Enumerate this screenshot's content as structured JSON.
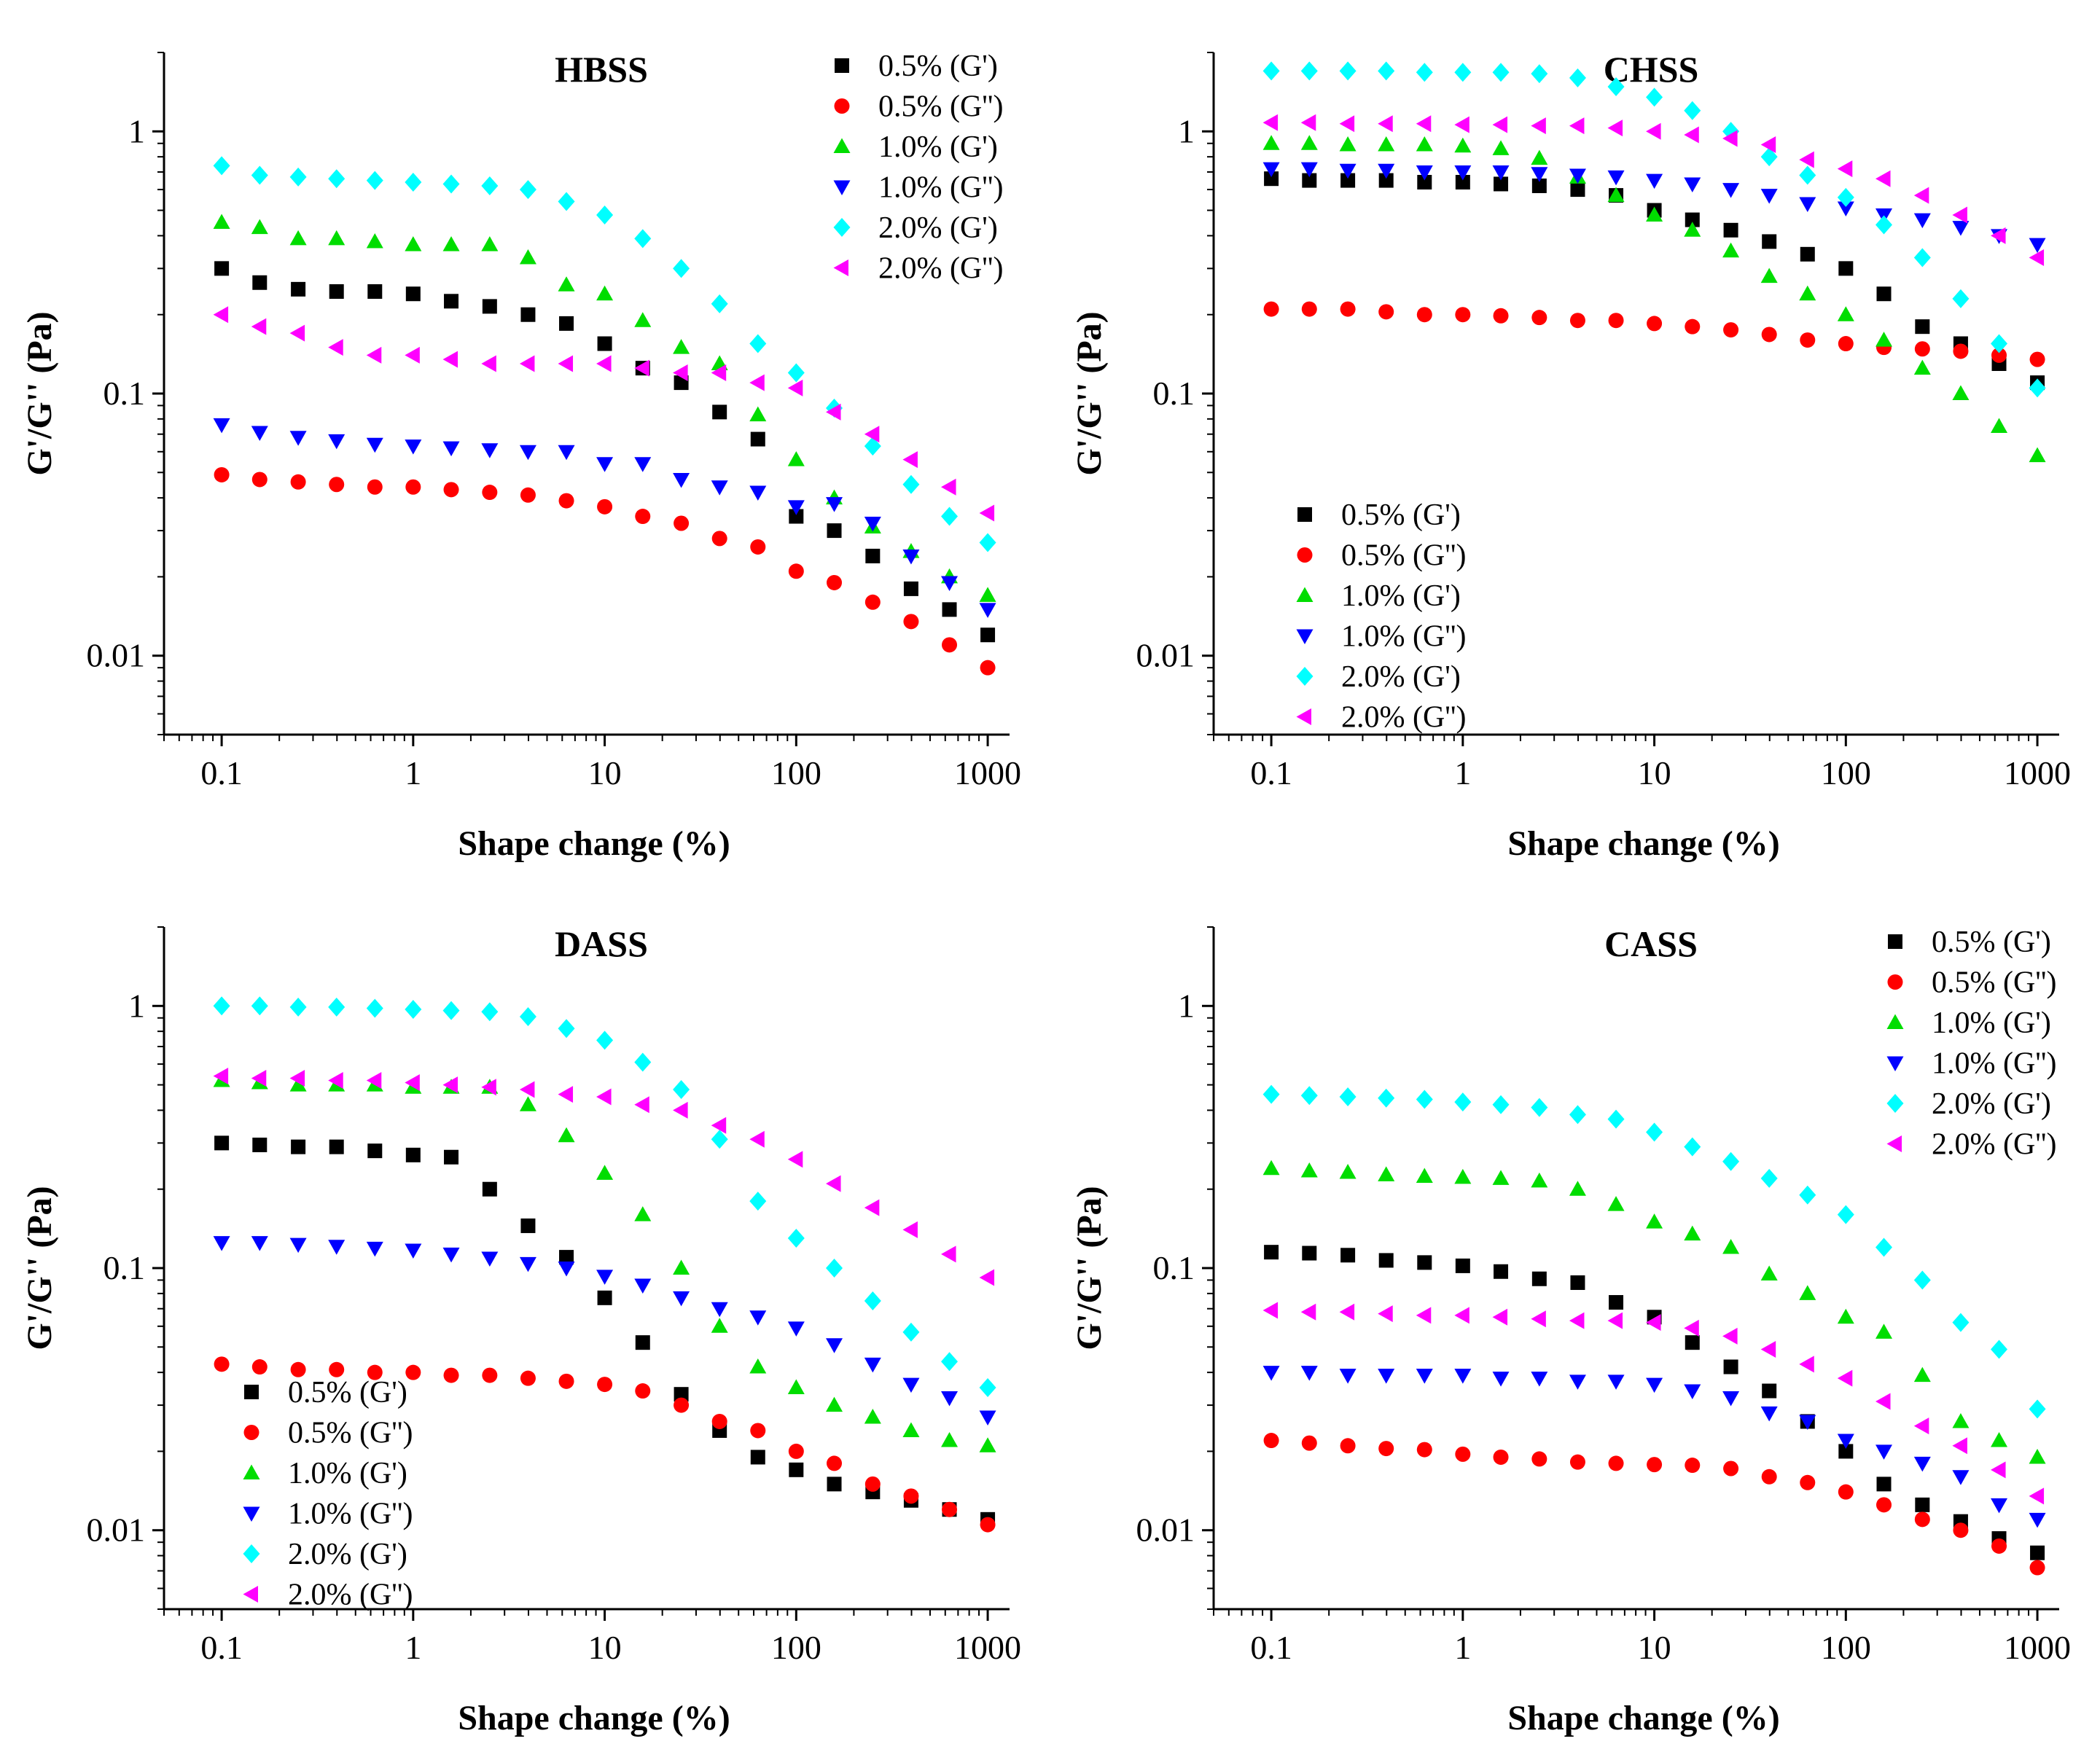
{
  "figure": {
    "background": "#ffffff"
  },
  "series_styles": [
    {
      "name": "0.5% (G')",
      "marker": "square",
      "color": "#000000"
    },
    {
      "name": "0.5% (G'')",
      "marker": "circle",
      "color": "#ff0000"
    },
    {
      "name": "1.0% (G')",
      "marker": "triangle-up",
      "color": "#00dd00"
    },
    {
      "name": "1.0% (G'')",
      "marker": "triangle-down",
      "color": "#0000ff"
    },
    {
      "name": "2.0% (G')",
      "marker": "diamond",
      "color": "#00ffff"
    },
    {
      "name": "2.0% (G'')",
      "marker": "triangle-left",
      "color": "#ff00ff"
    }
  ],
  "chart_data": [
    {
      "type": "scatter",
      "title": "HBSS",
      "xlabel": "Shape change (%)",
      "ylabel": "G'/G'' (Pa)",
      "xscale": "log",
      "yscale": "log",
      "xlim": [
        0.05,
        1300
      ],
      "ylim": [
        0.005,
        2
      ],
      "x_ticks": [
        "0.1",
        "1",
        "10",
        "100",
        "1000"
      ],
      "y_ticks": [
        "0.01",
        "0.1",
        "1"
      ],
      "legend_position": "top-right",
      "x": [
        0.1,
        0.158,
        0.251,
        0.398,
        0.631,
        1,
        1.58,
        2.51,
        3.98,
        6.31,
        10,
        15.8,
        25.1,
        39.8,
        63.1,
        100,
        158,
        251,
        398,
        631,
        1000
      ],
      "series": [
        {
          "name": "0.5% (G')",
          "values": [
            0.3,
            0.265,
            0.25,
            0.245,
            0.245,
            0.24,
            0.225,
            0.215,
            0.2,
            0.185,
            0.155,
            0.125,
            0.11,
            0.085,
            0.067,
            0.034,
            0.03,
            0.024,
            0.018,
            0.015,
            0.012
          ]
        },
        {
          "name": "0.5% (G'')",
          "values": [
            0.049,
            0.047,
            0.046,
            0.045,
            0.044,
            0.044,
            0.043,
            0.042,
            0.041,
            0.039,
            0.037,
            0.034,
            0.032,
            0.028,
            0.026,
            0.021,
            0.019,
            0.016,
            0.0135,
            0.011,
            0.009
          ]
        },
        {
          "name": "1.0% (G')",
          "values": [
            0.45,
            0.43,
            0.39,
            0.39,
            0.38,
            0.37,
            0.37,
            0.37,
            0.33,
            0.26,
            0.24,
            0.19,
            0.15,
            0.13,
            0.083,
            0.056,
            0.04,
            0.031,
            0.025,
            0.02,
            0.017
          ]
        },
        {
          "name": "1.0% (G'')",
          "values": [
            0.076,
            0.071,
            0.068,
            0.066,
            0.064,
            0.063,
            0.062,
            0.061,
            0.06,
            0.06,
            0.054,
            0.054,
            0.047,
            0.044,
            0.042,
            0.037,
            0.038,
            0.032,
            0.024,
            0.019,
            0.015
          ]
        },
        {
          "name": "2.0% (G')",
          "values": [
            0.74,
            0.68,
            0.67,
            0.66,
            0.65,
            0.64,
            0.63,
            0.62,
            0.6,
            0.54,
            0.48,
            0.39,
            0.3,
            0.22,
            0.155,
            0.12,
            0.088,
            0.063,
            0.045,
            0.034,
            0.027
          ]
        },
        {
          "name": "2.0% (G'')",
          "values": [
            0.2,
            0.18,
            0.17,
            0.15,
            0.14,
            0.14,
            0.135,
            0.13,
            0.13,
            0.13,
            0.13,
            0.125,
            0.12,
            0.12,
            0.11,
            0.105,
            0.085,
            0.07,
            0.056,
            0.044,
            0.035
          ]
        }
      ]
    },
    {
      "type": "scatter",
      "title": "CHSS",
      "xlabel": "Shape change (%)",
      "ylabel": "G'/G'' (Pa)",
      "xscale": "log",
      "yscale": "log",
      "xlim": [
        0.05,
        1300
      ],
      "ylim": [
        0.005,
        2
      ],
      "x_ticks": [
        "0.1",
        "1",
        "10",
        "100",
        "1000"
      ],
      "y_ticks": [
        "0.01",
        "0.1",
        "1"
      ],
      "legend_position": "bottom-left",
      "x": [
        0.1,
        0.158,
        0.251,
        0.398,
        0.631,
        1,
        1.58,
        2.51,
        3.98,
        6.31,
        10,
        15.8,
        25.1,
        39.8,
        63.1,
        100,
        158,
        251,
        398,
        631,
        1000
      ],
      "series": [
        {
          "name": "0.5% (G')",
          "values": [
            0.66,
            0.65,
            0.65,
            0.65,
            0.64,
            0.64,
            0.63,
            0.62,
            0.6,
            0.57,
            0.5,
            0.46,
            0.42,
            0.38,
            0.34,
            0.3,
            0.24,
            0.18,
            0.155,
            0.13,
            0.11
          ]
        },
        {
          "name": "0.5% (G'')",
          "values": [
            0.21,
            0.21,
            0.21,
            0.205,
            0.2,
            0.2,
            0.198,
            0.195,
            0.19,
            0.19,
            0.185,
            0.18,
            0.175,
            0.168,
            0.16,
            0.155,
            0.15,
            0.148,
            0.145,
            0.14,
            0.135
          ]
        },
        {
          "name": "1.0% (G')",
          "values": [
            0.9,
            0.9,
            0.89,
            0.89,
            0.89,
            0.88,
            0.86,
            0.79,
            0.67,
            0.57,
            0.48,
            0.42,
            0.35,
            0.28,
            0.24,
            0.2,
            0.16,
            0.125,
            0.1,
            0.075,
            0.058
          ]
        },
        {
          "name": "1.0% (G'')",
          "values": [
            0.72,
            0.72,
            0.71,
            0.71,
            0.7,
            0.7,
            0.7,
            0.69,
            0.68,
            0.67,
            0.65,
            0.63,
            0.6,
            0.57,
            0.53,
            0.51,
            0.48,
            0.46,
            0.43,
            0.4,
            0.37
          ]
        },
        {
          "name": "2.0% (G')",
          "values": [
            1.7,
            1.7,
            1.7,
            1.7,
            1.68,
            1.68,
            1.68,
            1.66,
            1.6,
            1.48,
            1.35,
            1.2,
            1.0,
            0.8,
            0.68,
            0.56,
            0.44,
            0.33,
            0.23,
            0.155,
            0.105
          ]
        },
        {
          "name": "2.0% (G'')",
          "values": [
            1.08,
            1.08,
            1.07,
            1.07,
            1.07,
            1.06,
            1.06,
            1.05,
            1.05,
            1.03,
            1.0,
            0.97,
            0.94,
            0.89,
            0.78,
            0.72,
            0.66,
            0.57,
            0.48,
            0.4,
            0.33
          ]
        }
      ]
    },
    {
      "type": "scatter",
      "title": "DASS",
      "xlabel": "Shape change (%)",
      "ylabel": "G'/G'' (Pa)",
      "xscale": "log",
      "yscale": "log",
      "xlim": [
        0.05,
        1300
      ],
      "ylim": [
        0.005,
        2
      ],
      "x_ticks": [
        "0.1",
        "1",
        "10",
        "100",
        "1000"
      ],
      "y_ticks": [
        "0.01",
        "0.1",
        "1"
      ],
      "legend_position": "bottom-left",
      "x": [
        0.1,
        0.158,
        0.251,
        0.398,
        0.631,
        1,
        1.58,
        2.51,
        3.98,
        6.31,
        10,
        15.8,
        25.1,
        39.8,
        63.1,
        100,
        158,
        251,
        398,
        631,
        1000
      ],
      "series": [
        {
          "name": "0.5% (G')",
          "values": [
            0.3,
            0.295,
            0.29,
            0.29,
            0.28,
            0.27,
            0.265,
            0.2,
            0.145,
            0.11,
            0.077,
            0.052,
            0.033,
            0.024,
            0.019,
            0.017,
            0.015,
            0.014,
            0.013,
            0.012,
            0.011
          ]
        },
        {
          "name": "0.5% (G'')",
          "values": [
            0.043,
            0.042,
            0.041,
            0.041,
            0.04,
            0.04,
            0.039,
            0.039,
            0.038,
            0.037,
            0.036,
            0.034,
            0.03,
            0.026,
            0.024,
            0.02,
            0.018,
            0.015,
            0.0135,
            0.012,
            0.0105
          ]
        },
        {
          "name": "1.0% (G')",
          "values": [
            0.52,
            0.51,
            0.5,
            0.5,
            0.5,
            0.49,
            0.49,
            0.49,
            0.42,
            0.32,
            0.23,
            0.16,
            0.1,
            0.06,
            0.042,
            0.035,
            0.03,
            0.027,
            0.024,
            0.022,
            0.021
          ]
        },
        {
          "name": "1.0% (G'')",
          "values": [
            0.125,
            0.125,
            0.123,
            0.121,
            0.119,
            0.117,
            0.113,
            0.109,
            0.104,
            0.1,
            0.093,
            0.086,
            0.077,
            0.07,
            0.065,
            0.059,
            0.051,
            0.043,
            0.036,
            0.032,
            0.027
          ]
        },
        {
          "name": "2.0% (G')",
          "values": [
            1.0,
            1.0,
            0.99,
            0.99,
            0.98,
            0.97,
            0.96,
            0.95,
            0.91,
            0.82,
            0.74,
            0.61,
            0.48,
            0.31,
            0.18,
            0.13,
            0.1,
            0.075,
            0.057,
            0.044,
            0.035
          ]
        },
        {
          "name": "2.0% (G'')",
          "values": [
            0.54,
            0.53,
            0.53,
            0.52,
            0.52,
            0.51,
            0.5,
            0.49,
            0.48,
            0.46,
            0.45,
            0.42,
            0.4,
            0.35,
            0.31,
            0.26,
            0.21,
            0.17,
            0.14,
            0.113,
            0.092
          ]
        }
      ]
    },
    {
      "type": "scatter",
      "title": "CASS",
      "xlabel": "Shape change (%)",
      "ylabel": "G'/G'' (Pa)",
      "xscale": "log",
      "yscale": "log",
      "xlim": [
        0.05,
        1300
      ],
      "ylim": [
        0.005,
        2
      ],
      "x_ticks": [
        "0.1",
        "1",
        "10",
        "100",
        "1000"
      ],
      "y_ticks": [
        "0.01",
        "0.1",
        "1"
      ],
      "legend_position": "top-right",
      "x": [
        0.1,
        0.158,
        0.251,
        0.398,
        0.631,
        1,
        1.58,
        2.51,
        3.98,
        6.31,
        10,
        15.8,
        25.1,
        39.8,
        63.1,
        100,
        158,
        251,
        398,
        631,
        1000
      ],
      "series": [
        {
          "name": "0.5% (G')",
          "values": [
            0.115,
            0.114,
            0.112,
            0.107,
            0.105,
            0.102,
            0.097,
            0.091,
            0.088,
            0.074,
            0.065,
            0.052,
            0.042,
            0.034,
            0.026,
            0.02,
            0.015,
            0.0125,
            0.0108,
            0.0093,
            0.0082
          ]
        },
        {
          "name": "0.5% (G'')",
          "values": [
            0.022,
            0.0215,
            0.021,
            0.0205,
            0.0203,
            0.0195,
            0.019,
            0.0187,
            0.0182,
            0.018,
            0.0178,
            0.0177,
            0.0172,
            0.016,
            0.0152,
            0.014,
            0.0125,
            0.011,
            0.01,
            0.0087,
            0.0072
          ]
        },
        {
          "name": "1.0% (G')",
          "values": [
            0.24,
            0.235,
            0.232,
            0.227,
            0.224,
            0.222,
            0.22,
            0.215,
            0.2,
            0.175,
            0.15,
            0.135,
            0.12,
            0.095,
            0.08,
            0.065,
            0.057,
            0.039,
            0.026,
            0.022,
            0.019
          ]
        },
        {
          "name": "1.0% (G'')",
          "values": [
            0.04,
            0.04,
            0.039,
            0.039,
            0.039,
            0.039,
            0.038,
            0.038,
            0.037,
            0.037,
            0.036,
            0.034,
            0.032,
            0.028,
            0.026,
            0.022,
            0.02,
            0.018,
            0.016,
            0.0125,
            0.011
          ]
        },
        {
          "name": "2.0% (G')",
          "values": [
            0.46,
            0.455,
            0.45,
            0.445,
            0.44,
            0.43,
            0.42,
            0.41,
            0.385,
            0.37,
            0.33,
            0.29,
            0.255,
            0.22,
            0.19,
            0.16,
            0.12,
            0.09,
            0.062,
            0.049,
            0.029
          ]
        },
        {
          "name": "2.0% (G'')",
          "values": [
            0.069,
            0.068,
            0.068,
            0.067,
            0.066,
            0.066,
            0.065,
            0.064,
            0.063,
            0.063,
            0.062,
            0.059,
            0.055,
            0.049,
            0.043,
            0.038,
            0.031,
            0.025,
            0.021,
            0.017,
            0.0135
          ]
        }
      ]
    }
  ]
}
